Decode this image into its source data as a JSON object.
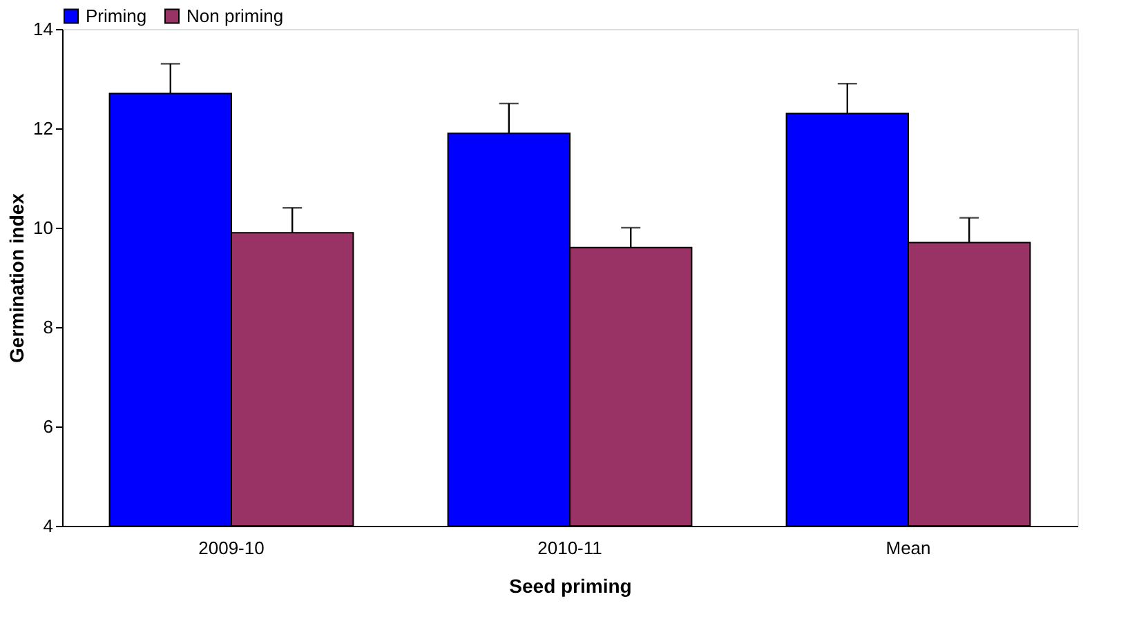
{
  "chart_data": {
    "type": "bar",
    "xlabel": "Seed priming",
    "ylabel": "Germination index",
    "categories": [
      "2009-10",
      "2010-11",
      "Mean"
    ],
    "series": [
      {
        "name": "Priming",
        "color": "#0000ff",
        "values": [
          12.7,
          11.9,
          12.3
        ],
        "errors": [
          [
            12.7,
            13.3
          ],
          [
            11.9,
            12.5
          ],
          [
            12.3,
            12.9
          ]
        ]
      },
      {
        "name": "Non priming",
        "color": "#993366",
        "values": [
          9.9,
          9.6,
          9.7
        ],
        "errors": [
          [
            9.9,
            10.4
          ],
          [
            9.6,
            10.0
          ],
          [
            9.7,
            10.2
          ]
        ]
      }
    ],
    "ylim": [
      4,
      14
    ],
    "yticks": [
      4,
      6,
      8,
      10,
      12,
      14
    ],
    "grid": false,
    "legend": "top"
  }
}
